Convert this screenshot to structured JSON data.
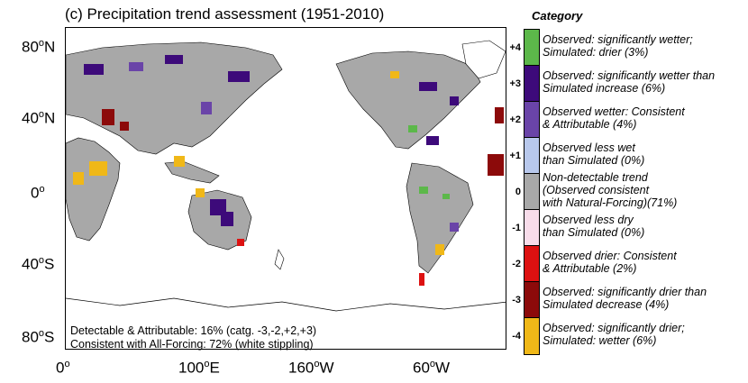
{
  "title": "(c) Precipitation trend assessment (1951-2010)",
  "latitude_labels": [
    {
      "base": "80",
      "sup": "o",
      "dir": "N"
    },
    {
      "base": "40",
      "sup": "o",
      "dir": "N"
    },
    {
      "base": "0",
      "sup": "o",
      "dir": ""
    },
    {
      "base": "40",
      "sup": "o",
      "dir": "S"
    },
    {
      "base": "80",
      "sup": "o",
      "dir": "S"
    }
  ],
  "longitude_labels": [
    {
      "base": "0",
      "sup": "o",
      "dir": ""
    },
    {
      "base": "100",
      "sup": "o",
      "dir": "E"
    },
    {
      "base": "160",
      "sup": "o",
      "dir": "W"
    },
    {
      "base": "60",
      "sup": "o",
      "dir": "W"
    }
  ],
  "notes": {
    "line1": "Detectable & Attributable: 16% (catg. -3,-2,+2,+3)",
    "line2": "Consistent with All-Forcing: 72% (white stippling)"
  },
  "legend": {
    "title": "Category",
    "items": [
      {
        "code": "+4",
        "line1": "Observed: significantly wetter;",
        "line2": "Simulated: drier (3%)",
        "line3": "",
        "color": "#5cb84a"
      },
      {
        "code": "+3",
        "line1": "Observed: significantly wetter than",
        "line2": "Simulated increase (6%)",
        "line3": "",
        "color": "#3d0a7a"
      },
      {
        "code": "+2",
        "line1": "Observed wetter: Consistent",
        "line2": "& Attributable (4%)",
        "line3": "",
        "color": "#6a44a8"
      },
      {
        "code": "+1",
        "line1": "Observed less wet",
        "line2": "than Simulated (0%)",
        "line3": "",
        "color": "#b8c8ec"
      },
      {
        "code": "0",
        "line1": "Non-detectable trend",
        "line2": "(Observed consistent",
        "line3": "with Natural-Forcing)(71%)",
        "color": "#a8a8a8"
      },
      {
        "code": "-1",
        "line1": "Observed less dry",
        "line2": "than Simulated (0%)",
        "line3": "",
        "color": "#f8dcea"
      },
      {
        "code": "-2",
        "line1": "Observed drier: Consistent",
        "line2": "& Attributable (2%)",
        "line3": "",
        "color": "#dd1111"
      },
      {
        "code": "-3",
        "line1": "Observed: significantly drier than",
        "line2": "Simulated decrease (4%)",
        "line3": "",
        "color": "#8c0a0a"
      },
      {
        "code": "-4",
        "line1": "Observed: significantly drier;",
        "line2": "Simulated: wetter (6%)",
        "line3": "",
        "color": "#f0b818"
      }
    ]
  },
  "colors": {
    "plus4": "#5cb84a",
    "plus3": "#3d0a7a",
    "plus2": "#6a44a8",
    "zero": "#a8a8a8",
    "minus2": "#dd1111",
    "minus3": "#8c0a0a",
    "minus4": "#f0b818"
  }
}
